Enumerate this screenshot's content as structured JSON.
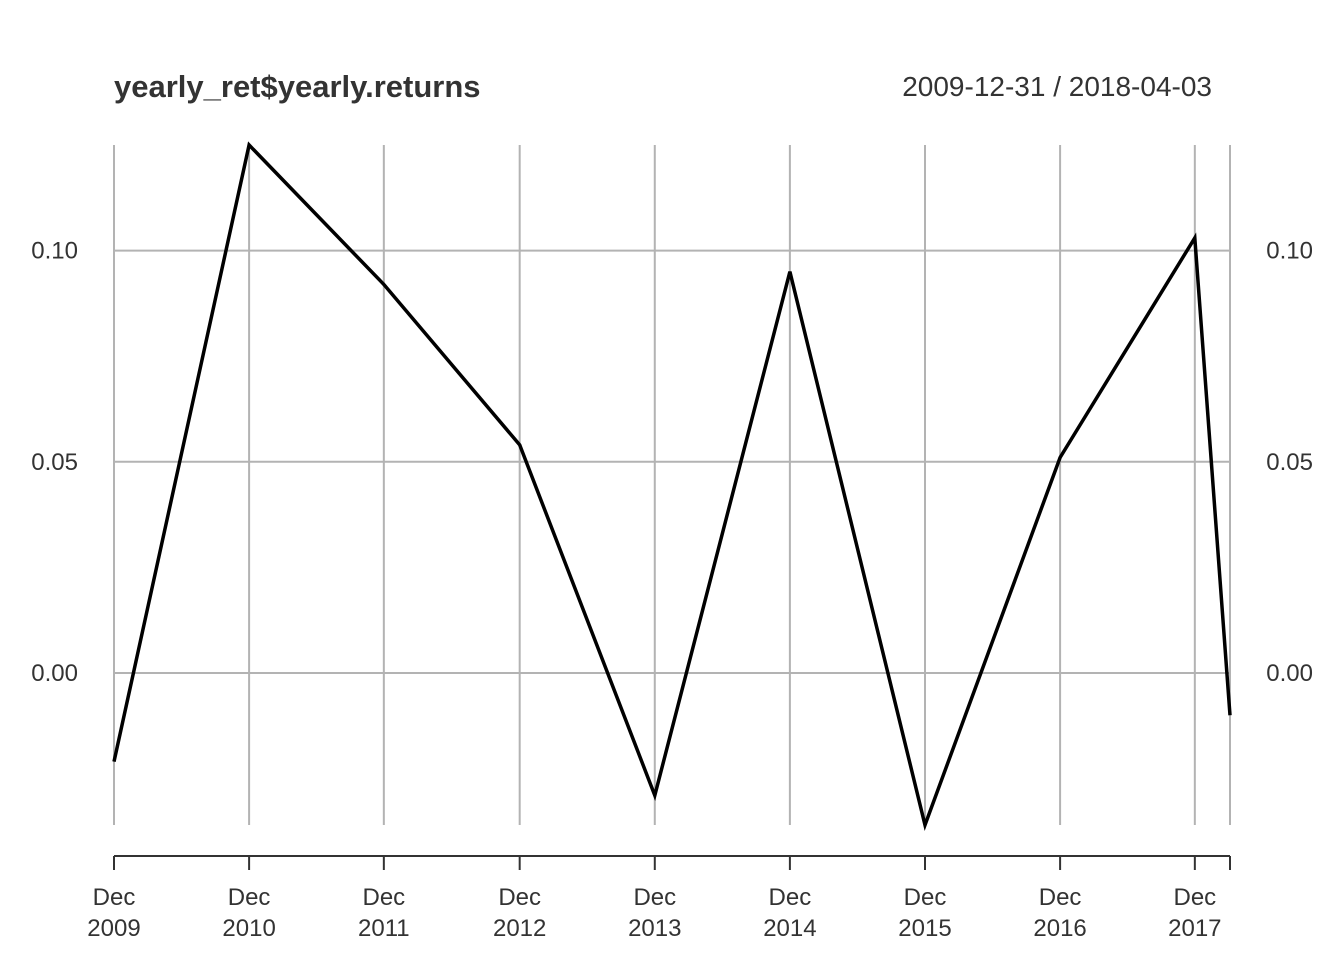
{
  "chart_data": {
    "type": "line",
    "title": "yearly_ret$yearly.returns",
    "date_range": "2009-12-31 / 2018-04-03",
    "x": [
      "2009-12-31",
      "2010-12-31",
      "2011-12-30",
      "2012-12-31",
      "2013-12-31",
      "2014-12-31",
      "2015-12-31",
      "2016-12-30",
      "2017-12-29",
      "2018-04-03"
    ],
    "series": [
      {
        "values": [
          -0.021,
          0.125,
          0.092,
          0.054,
          -0.029,
          0.095,
          -0.036,
          0.051,
          0.103,
          -0.01
        ]
      }
    ],
    "ylim": [
      -0.036,
      0.125
    ],
    "yticks": [
      {
        "value": 0.0,
        "label": "0.00"
      },
      {
        "value": 0.05,
        "label": "0.05"
      },
      {
        "value": 0.1,
        "label": "0.10"
      }
    ],
    "xticks": [
      {
        "month": "Dec",
        "year": "2009"
      },
      {
        "month": "Dec",
        "year": "2010"
      },
      {
        "month": "Dec",
        "year": "2011"
      },
      {
        "month": "Dec",
        "year": "2012"
      },
      {
        "month": "Dec",
        "year": "2013"
      },
      {
        "month": "Dec",
        "year": "2014"
      },
      {
        "month": "Dec",
        "year": "2015"
      },
      {
        "month": "Dec",
        "year": "2016"
      },
      {
        "month": "Dec",
        "year": "2017"
      }
    ],
    "grid": true,
    "line_color": "#000000",
    "grid_color": "#b3b3b3"
  }
}
